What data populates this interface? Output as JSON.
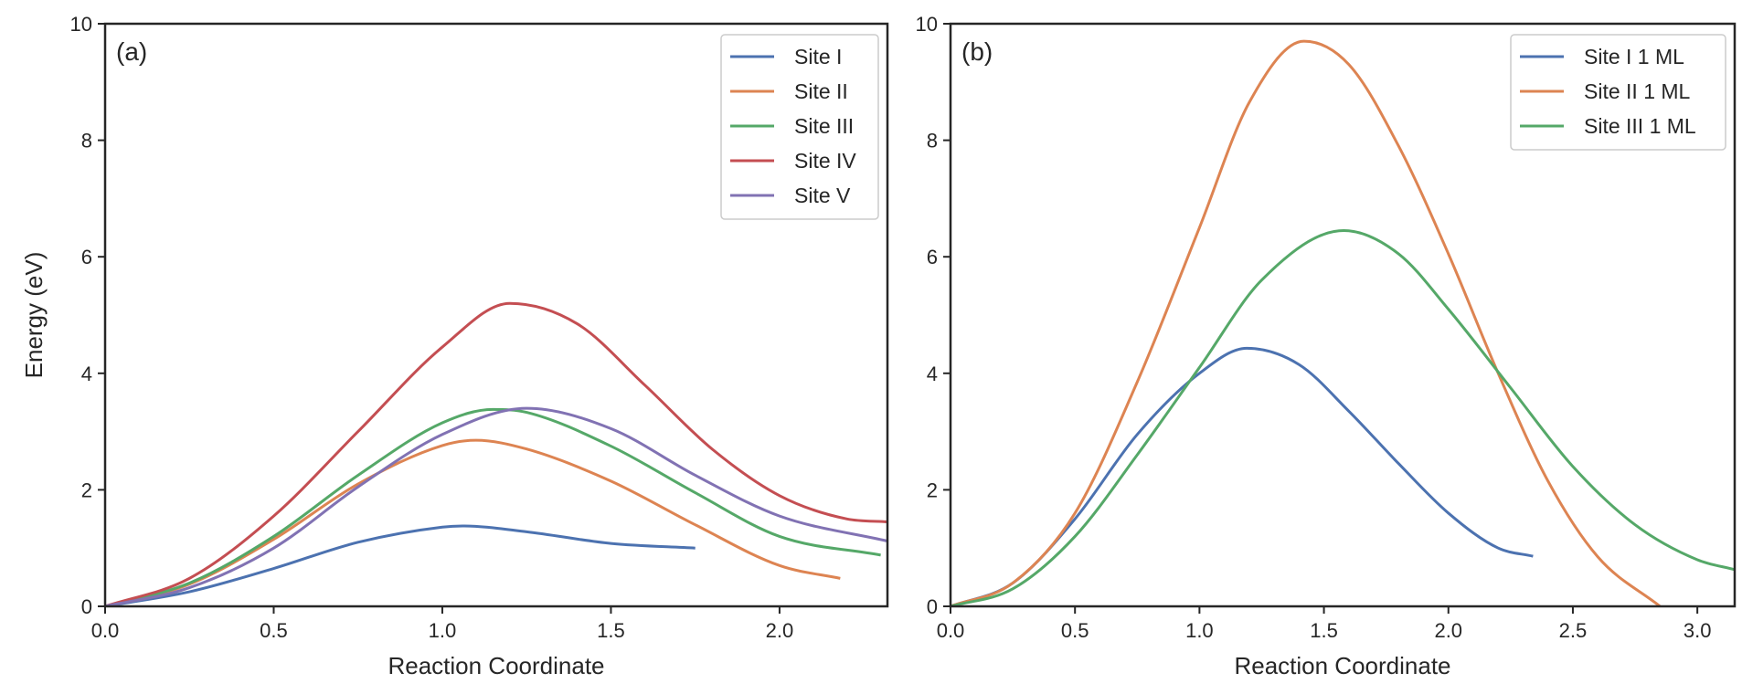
{
  "chart_data": [
    {
      "type": "line",
      "panel_label": "(a)",
      "xlabel": "Reaction Coordinate",
      "ylabel": "Energy (eV)",
      "xlim": [
        0.0,
        2.32
      ],
      "ylim": [
        0,
        10
      ],
      "xticks": [
        "0.0",
        "0.5",
        "1.0",
        "1.5",
        "2.0"
      ],
      "yticks": [
        "0",
        "2",
        "4",
        "6",
        "8",
        "10"
      ],
      "legend_position": "top-right",
      "series": [
        {
          "name": "Site I",
          "color": "#4c72b0",
          "x": [
            0.0,
            0.25,
            0.5,
            0.75,
            1.0,
            1.06,
            1.25,
            1.5,
            1.75
          ],
          "y": [
            0.0,
            0.25,
            0.65,
            1.1,
            1.36,
            1.38,
            1.28,
            1.08,
            1.0
          ]
        },
        {
          "name": "Site II",
          "color": "#dd8452",
          "x": [
            0.0,
            0.25,
            0.5,
            0.75,
            1.0,
            1.1,
            1.25,
            1.5,
            1.75,
            2.0,
            2.18
          ],
          "y": [
            0.0,
            0.38,
            1.15,
            2.1,
            2.76,
            2.85,
            2.7,
            2.15,
            1.4,
            0.7,
            0.48
          ]
        },
        {
          "name": "Site III",
          "color": "#55a868",
          "x": [
            0.0,
            0.25,
            0.5,
            0.75,
            1.0,
            1.15,
            1.25,
            1.5,
            1.75,
            2.0,
            2.3
          ],
          "y": [
            0.0,
            0.4,
            1.2,
            2.25,
            3.15,
            3.38,
            3.33,
            2.75,
            1.95,
            1.2,
            0.88
          ]
        },
        {
          "name": "Site IV",
          "color": "#c44e52",
          "x": [
            0.0,
            0.25,
            0.5,
            0.75,
            1.0,
            1.2,
            1.4,
            1.6,
            1.8,
            2.0,
            2.2,
            2.32
          ],
          "y": [
            0.0,
            0.48,
            1.55,
            3.0,
            4.45,
            5.2,
            4.85,
            3.8,
            2.7,
            1.9,
            1.5,
            1.45
          ]
        },
        {
          "name": "Site V",
          "color": "#8172b3",
          "x": [
            0.0,
            0.25,
            0.5,
            0.75,
            1.0,
            1.25,
            1.5,
            1.75,
            2.0,
            2.32
          ],
          "y": [
            0.0,
            0.32,
            1.0,
            2.05,
            2.95,
            3.4,
            3.05,
            2.25,
            1.55,
            1.12
          ]
        }
      ]
    },
    {
      "type": "line",
      "panel_label": "(b)",
      "xlabel": "Reaction Coordinate",
      "ylabel": "",
      "xlim": [
        0.0,
        3.15
      ],
      "ylim": [
        0,
        10
      ],
      "xticks": [
        "0.0",
        "0.5",
        "1.0",
        "1.5",
        "2.0",
        "2.5",
        "3.0"
      ],
      "yticks": [
        "0",
        "2",
        "4",
        "6",
        "8",
        "10"
      ],
      "legend_position": "top-right",
      "series": [
        {
          "name": "Site I 1 ML",
          "color": "#4c72b0",
          "x": [
            0.0,
            0.25,
            0.5,
            0.75,
            1.0,
            1.19,
            1.4,
            1.6,
            1.8,
            2.0,
            2.2,
            2.34
          ],
          "y": [
            0.0,
            0.4,
            1.5,
            2.95,
            4.0,
            4.43,
            4.15,
            3.35,
            2.45,
            1.6,
            1.0,
            0.86
          ]
        },
        {
          "name": "Site II 1 ML",
          "color": "#dd8452",
          "x": [
            0.0,
            0.25,
            0.5,
            0.75,
            1.0,
            1.2,
            1.42,
            1.6,
            1.8,
            2.0,
            2.2,
            2.4,
            2.6,
            2.85
          ],
          "y": [
            0.0,
            0.4,
            1.6,
            3.85,
            6.5,
            8.65,
            9.7,
            9.3,
            7.9,
            6.05,
            4.0,
            2.15,
            0.85,
            0.0
          ]
        },
        {
          "name": "Site III 1 ML",
          "color": "#55a868",
          "x": [
            0.0,
            0.25,
            0.5,
            0.75,
            1.0,
            1.25,
            1.58,
            1.8,
            2.0,
            2.25,
            2.5,
            2.75,
            3.0,
            3.15
          ],
          "y": [
            0.0,
            0.3,
            1.2,
            2.6,
            4.1,
            5.6,
            6.45,
            6.05,
            5.1,
            3.75,
            2.4,
            1.4,
            0.8,
            0.63
          ]
        }
      ]
    }
  ]
}
